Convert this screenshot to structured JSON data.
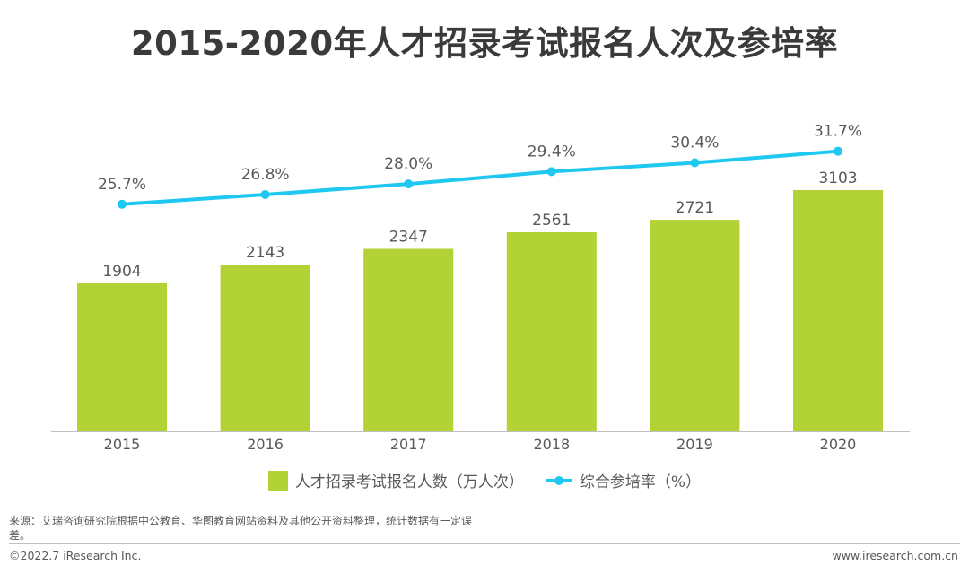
{
  "title": "2015-2020年人才招录考试报名人次及参培率",
  "chart_data": {
    "type": "bar+line",
    "categories": [
      "2015",
      "2016",
      "2017",
      "2018",
      "2019",
      "2020"
    ],
    "series": [
      {
        "name": "人才招录考试报名人数（万人次）",
        "type": "bar",
        "axis": "left",
        "values": [
          1904,
          2143,
          2347,
          2561,
          2721,
          3103
        ],
        "labels": [
          "1904",
          "2143",
          "2347",
          "2561",
          "2721",
          "3103"
        ],
        "color": "#b2d235"
      },
      {
        "name": "综合参培率（%）",
        "type": "line",
        "axis": "right",
        "values": [
          25.7,
          26.8,
          28.0,
          29.4,
          30.4,
          31.7
        ],
        "labels": [
          "25.7%",
          "26.8%",
          "28.0%",
          "29.4%",
          "30.4%",
          "31.7%"
        ],
        "color": "#1ec8f0"
      }
    ],
    "ylim_left": [
      0,
      5000
    ],
    "ylim_right": [
      0,
      44
    ],
    "axes_visible": false,
    "grid": false,
    "legend": "bottom"
  },
  "legend": {
    "bar_label": "人才招录考试报名人数（万人次）",
    "line_label": "综合参培率（%）"
  },
  "footer": {
    "source": "来源：艾瑞咨询研究院根据中公教育、华图教育网站资料及其他公开资料整理，统计数据有一定误差。",
    "copyright": "©2022.7 iResearch Inc.",
    "website": "www.iresearch.com.cn"
  }
}
